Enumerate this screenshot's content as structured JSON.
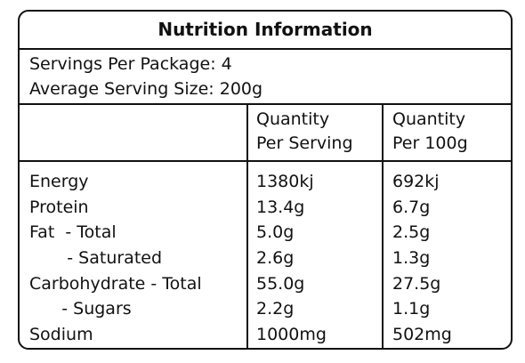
{
  "title": "Nutrition Information",
  "servings": {
    "per_package": "Servings Per Package: 4",
    "serving_size": "Average Serving Size: 200g"
  },
  "columns": {
    "per_serving": [
      "Quantity",
      "Per Serving"
    ],
    "per_100g": [
      "Quantity",
      "Per 100g"
    ]
  },
  "rows": [
    {
      "name": "Energy",
      "per_serving": "1380kj",
      "per_100g": "692kj"
    },
    {
      "name": "Protein",
      "per_serving": "13.4g",
      "per_100g": "6.7g"
    },
    {
      "name": "Fat  - Total",
      "per_serving": "5.0g",
      "per_100g": "2.5g"
    },
    {
      "name": "       - Saturated",
      "per_serving": "2.6g",
      "per_100g": "1.3g"
    },
    {
      "name": "Carbohydrate - Total",
      "per_serving": "55.0g",
      "per_100g": "27.5g"
    },
    {
      "name": "      - Sugars",
      "per_serving": "2.2g",
      "per_100g": "1.1g"
    },
    {
      "name": "Sodium",
      "per_serving": "1000mg",
      "per_100g": "502mg"
    }
  ]
}
